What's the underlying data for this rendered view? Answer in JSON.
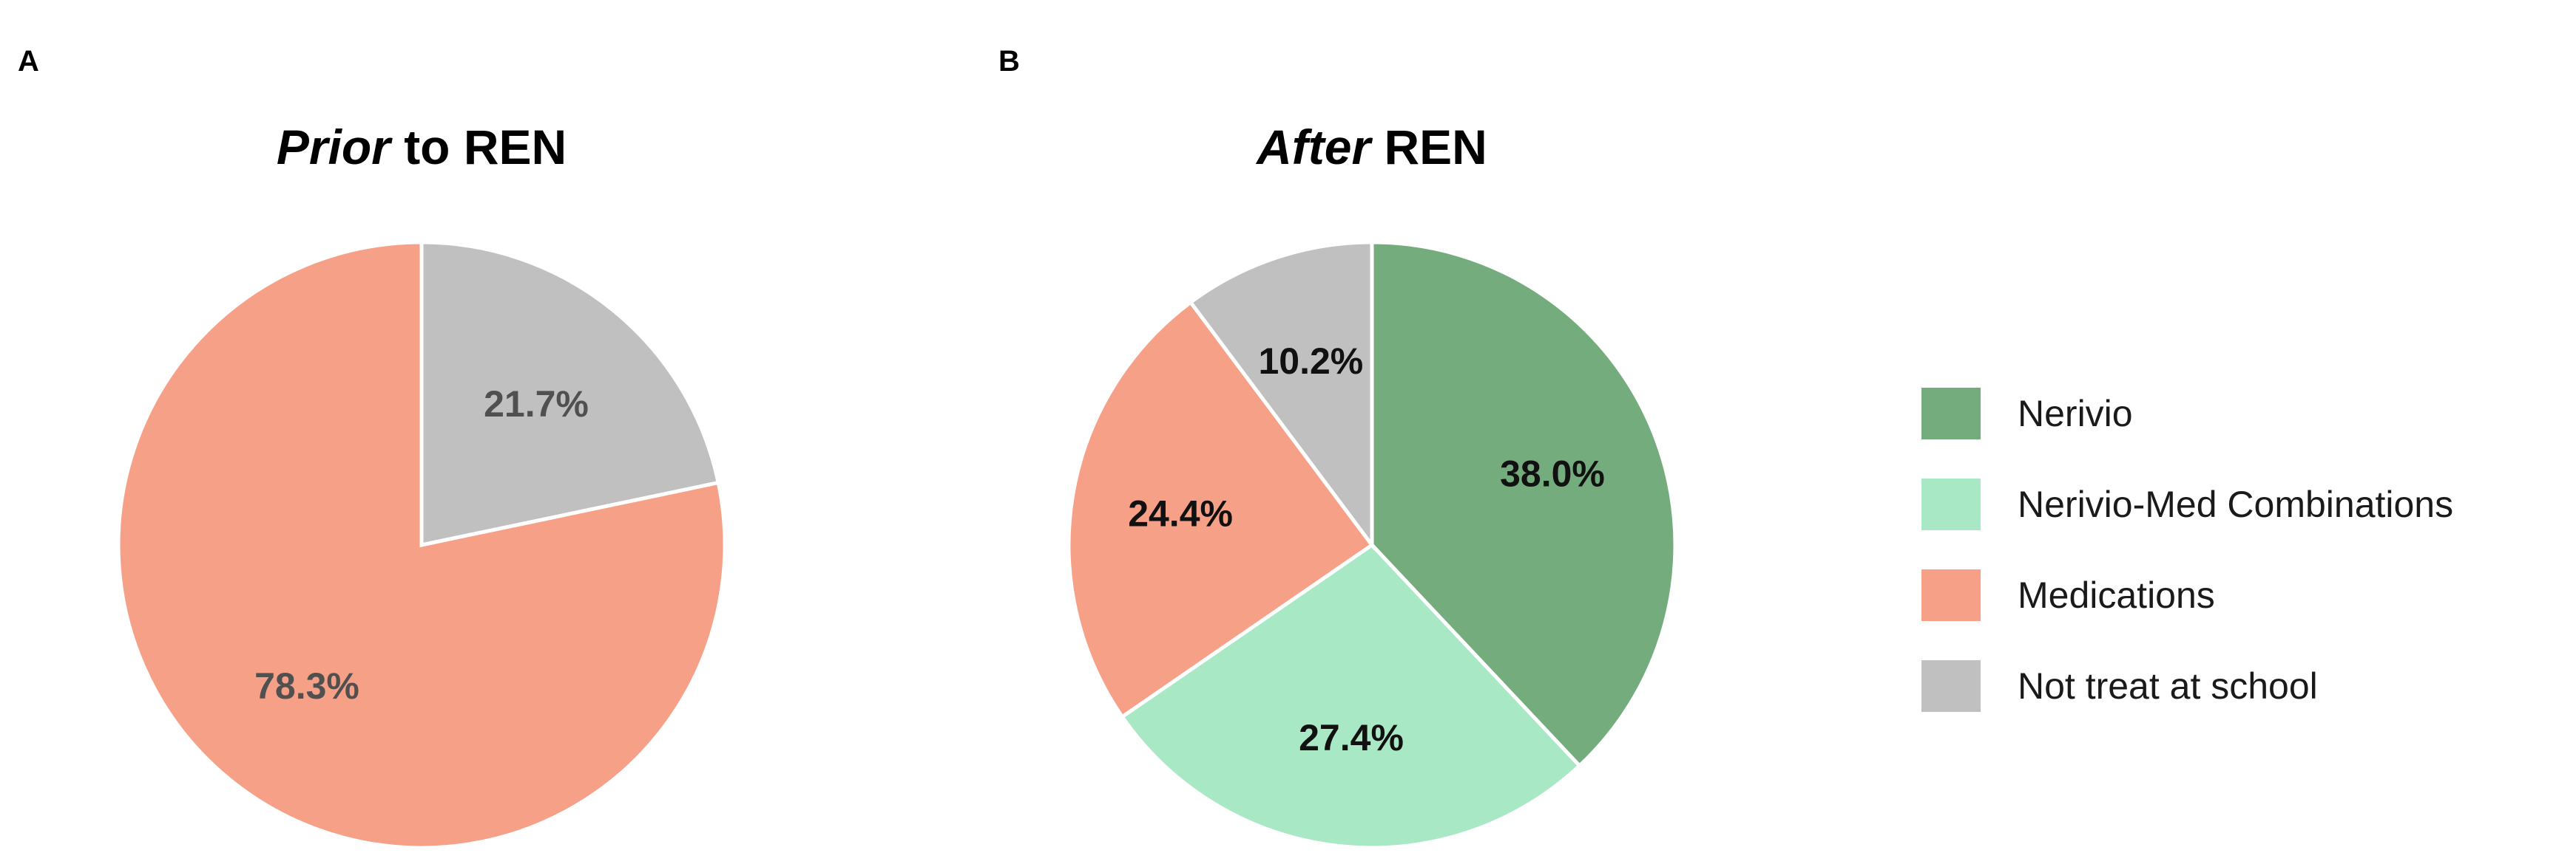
{
  "panels": [
    {
      "letter": "A",
      "title_italic": "Prior",
      "title_rest": " to REN"
    },
    {
      "letter": "B",
      "title_italic": "After",
      "title_rest": " REN"
    }
  ],
  "colors": {
    "Nerivio": "#74ac7e",
    "Nerivio-Med Combinations": "#a8e8c4",
    "Medications": "#f7a088",
    "Not treat at school": "#c0c0c0"
  },
  "chart_data": [
    {
      "type": "pie",
      "title": "Prior to REN",
      "slices": [
        {
          "name": "Not treat at school",
          "value": 21.7,
          "label": "21.7%"
        },
        {
          "name": "Medications",
          "value": 78.3,
          "label": "78.3%"
        }
      ]
    },
    {
      "type": "pie",
      "title": "After REN",
      "slices": [
        {
          "name": "Nerivio",
          "value": 38.0,
          "label": "38.0%"
        },
        {
          "name": "Nerivio-Med Combinations",
          "value": 27.4,
          "label": "27.4%"
        },
        {
          "name": "Medications",
          "value": 24.4,
          "label": "24.4%"
        },
        {
          "name": "Not treat at school",
          "value": 10.2,
          "label": "10.2%"
        }
      ]
    }
  ],
  "legend": {
    "placement": "right",
    "entries": [
      "Nerivio",
      "Nerivio-Med Combinations",
      "Medications",
      "Not treat at school"
    ]
  }
}
